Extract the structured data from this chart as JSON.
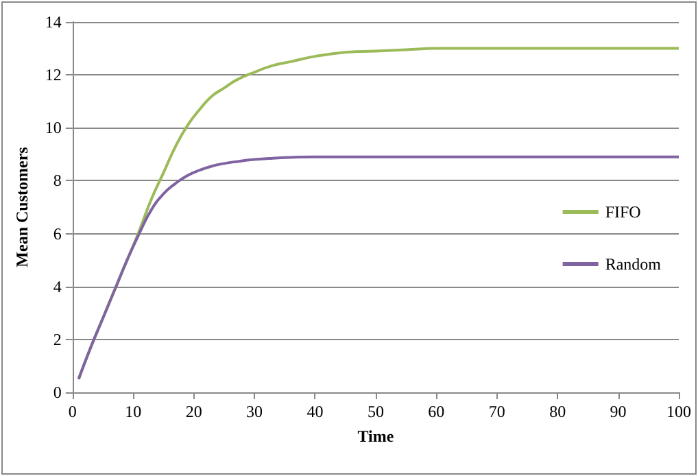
{
  "chart_data": {
    "type": "line",
    "xlabel": "Time",
    "ylabel": "Mean Customers",
    "xlim": [
      0,
      100
    ],
    "xticks": [
      0,
      10,
      20,
      30,
      40,
      50,
      60,
      70,
      80,
      90,
      100
    ],
    "ylim": [
      0,
      14
    ],
    "yticks": [
      0,
      2,
      4,
      6,
      8,
      10,
      12,
      14
    ],
    "grid": "y",
    "legend": "right",
    "marker": "none",
    "line_style": "solid",
    "series": [
      {
        "name": "FIFO",
        "color": "#9bbb59",
        "x": [
          1,
          3,
          5,
          7,
          9,
          11,
          13,
          15,
          17,
          19,
          21,
          23,
          25,
          27,
          30,
          33,
          36,
          40,
          45,
          50,
          55,
          60,
          70,
          80,
          90,
          100
        ],
        "values": [
          0.5,
          1.7,
          2.8,
          3.9,
          5.0,
          6.1,
          7.3,
          8.3,
          9.3,
          10.1,
          10.7,
          11.2,
          11.5,
          11.8,
          12.1,
          12.35,
          12.5,
          12.7,
          12.85,
          12.9,
          12.95,
          13.0,
          13.0,
          13.0,
          13.0,
          13.0
        ]
      },
      {
        "name": "Random",
        "color": "#8064a2",
        "x": [
          1,
          3,
          5,
          7,
          9,
          11,
          13,
          15,
          17,
          19,
          21,
          23,
          25,
          27,
          30,
          33,
          36,
          40,
          45,
          50,
          60,
          70,
          80,
          90,
          100
        ],
        "values": [
          0.5,
          1.7,
          2.8,
          3.9,
          5.0,
          6.0,
          6.9,
          7.5,
          7.9,
          8.2,
          8.4,
          8.55,
          8.65,
          8.72,
          8.8,
          8.85,
          8.88,
          8.9,
          8.9,
          8.9,
          8.9,
          8.9,
          8.9,
          8.9,
          8.9
        ]
      }
    ]
  }
}
